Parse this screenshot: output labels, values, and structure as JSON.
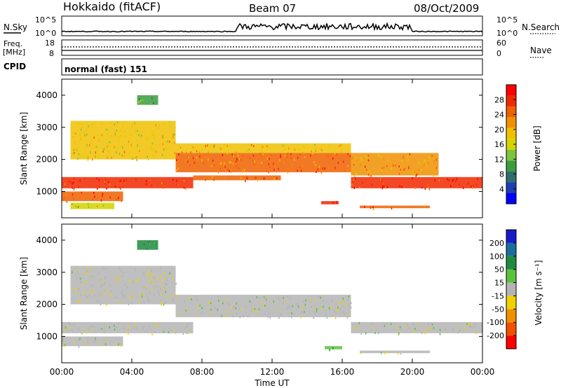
{
  "header": {
    "station": "Hokkaido (fitACF)",
    "beam": "Beam 07",
    "date": "08/Oct/2009"
  },
  "panels": {
    "nsky_label": "N.Sky",
    "nsearch_label": "N.Search",
    "noise_ticks": [
      "10^5",
      "10^0"
    ],
    "freq_label_top": "Freq.",
    "freq_label_unit": "[MHz]",
    "freq_ticks": [
      "18",
      "8"
    ],
    "nave_label": "Nave",
    "nave_ticks": [
      "60",
      "0"
    ],
    "cpid_label": "CPID",
    "cpid_value": "normal (fast) 151"
  },
  "axes": {
    "ylabel": "Slant Range [km]",
    "xlabel": "Time UT",
    "y_ticks": [
      "1000",
      "2000",
      "3000",
      "4000"
    ],
    "x_ticks": [
      "00:00",
      "04:00",
      "08:00",
      "12:00",
      "16:00",
      "20:00",
      "00:00"
    ]
  },
  "colorbars": {
    "power": {
      "title": "Power [dB]",
      "ticks": [
        "4",
        "8",
        "12",
        "16",
        "20",
        "24",
        "28"
      ],
      "colors": [
        "#0000ff",
        "#1f3fb0",
        "#2f6f6f",
        "#3c9c3c",
        "#7cc43c",
        "#d4d400",
        "#f0c000",
        "#f09000",
        "#f06000",
        "#f02800",
        "#ff0000"
      ]
    },
    "velocity": {
      "title": "Velocity [m s⁻¹]",
      "ticks": [
        "200",
        "100",
        "50",
        "15",
        "-15",
        "-50",
        "-100",
        "-200"
      ],
      "colors": [
        "#1a1acc",
        "#1a6f9a",
        "#1f8a40",
        "#5cc23c",
        "#b4b4b4",
        "#f0d000",
        "#f09000",
        "#f05000",
        "#ff0000"
      ]
    }
  },
  "chart_data": {
    "type": "heatmap",
    "title": "Hokkaido (fitACF) Beam 07 08/Oct/2009",
    "xlabel": "Time UT",
    "ylabel": "Slant Range [km]",
    "xlim": [
      0,
      24
    ],
    "ylim": [
      180,
      4500
    ],
    "series": [
      {
        "name": "Power [dB]",
        "regions": [
          {
            "t": [
              0,
              7.5
            ],
            "r": [
              1100,
              1450
            ],
            "value": 28
          },
          {
            "t": [
              0,
              3.5
            ],
            "r": [
              700,
              1000
            ],
            "value": 26
          },
          {
            "t": [
              0.5,
              3.0
            ],
            "r": [
              450,
              650
            ],
            "value": 16
          },
          {
            "t": [
              7.5,
              12.5
            ],
            "r": [
              1350,
              1500
            ],
            "value": 24
          },
          {
            "t": [
              6.5,
              16.5
            ],
            "r": [
              1600,
              2200
            ],
            "value": 24
          },
          {
            "t": [
              6.5,
              16.5
            ],
            "r": [
              2200,
              2500
            ],
            "value": 20
          },
          {
            "t": [
              16.5,
              24
            ],
            "r": [
              1100,
              1450
            ],
            "value": 28
          },
          {
            "t": [
              16.5,
              21.5
            ],
            "r": [
              1500,
              2200
            ],
            "value": 22
          },
          {
            "t": [
              14.8,
              15.8
            ],
            "r": [
              600,
              700
            ],
            "value": 28
          },
          {
            "t": [
              17.0,
              21.0
            ],
            "r": [
              480,
              560
            ],
            "value": 26
          },
          {
            "t": [
              0.5,
              6.5
            ],
            "r": [
              2000,
              3200
            ],
            "value": 18
          },
          {
            "t": [
              4.3,
              5.5
            ],
            "r": [
              3700,
              4000
            ],
            "value": 10
          }
        ]
      },
      {
        "name": "Velocity [m s⁻¹]",
        "regions": [
          {
            "t": [
              0,
              7.5
            ],
            "r": [
              1100,
              1450
            ],
            "value": 0
          },
          {
            "t": [
              0,
              3.5
            ],
            "r": [
              700,
              1000
            ],
            "value": 0
          },
          {
            "t": [
              6.5,
              16.5
            ],
            "r": [
              1600,
              2300
            ],
            "value": 0
          },
          {
            "t": [
              16.5,
              24
            ],
            "r": [
              1100,
              1450
            ],
            "value": 0
          },
          {
            "t": [
              15.0,
              16.0
            ],
            "r": [
              600,
              700
            ],
            "value": 40
          },
          {
            "t": [
              17.0,
              21.0
            ],
            "r": [
              480,
              560
            ],
            "value": 0
          },
          {
            "t": [
              0.5,
              6.5
            ],
            "r": [
              2000,
              3200
            ],
            "value": -10
          },
          {
            "t": [
              4.3,
              5.5
            ],
            "r": [
              3700,
              4000
            ],
            "value": 60
          }
        ]
      }
    ],
    "noise_nsky": [
      {
        "t": [
          0,
          10
        ],
        "level": 0.15
      },
      {
        "t": [
          10,
          20
        ],
        "level": 0.45
      },
      {
        "t": [
          20,
          24
        ],
        "level": 0.15
      }
    ],
    "grid": false
  }
}
